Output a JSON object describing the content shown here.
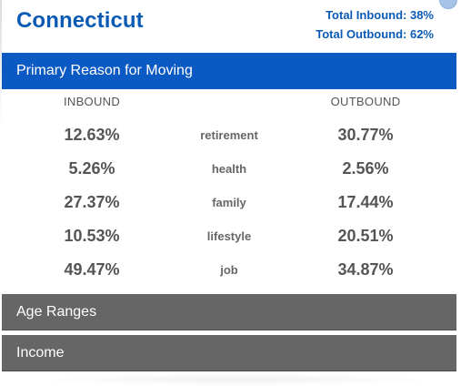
{
  "header": {
    "state": "Connecticut",
    "total_inbound": "Total Inbound: 38%",
    "total_outbound": "Total Outbound: 62%"
  },
  "sections": {
    "primary": "Primary Reason for Moving",
    "age": "Age Ranges",
    "income": "Income"
  },
  "table": {
    "inbound_label": "INBOUND",
    "outbound_label": "OUTBOUND",
    "rows": [
      {
        "reason": "retirement",
        "inbound": "12.63%",
        "outbound": "30.77%"
      },
      {
        "reason": "health",
        "inbound": "5.26%",
        "outbound": "2.56%"
      },
      {
        "reason": "family",
        "inbound": "27.37%",
        "outbound": "17.44%"
      },
      {
        "reason": "lifestyle",
        "inbound": "10.53%",
        "outbound": "20.51%"
      },
      {
        "reason": "job",
        "inbound": "49.47%",
        "outbound": "34.87%"
      }
    ]
  },
  "colors": {
    "accent_blue": "#0b59c2",
    "title_blue": "#0b5bb5",
    "collapsed_gray": "#666666"
  },
  "icons": {
    "close": "close-icon"
  }
}
